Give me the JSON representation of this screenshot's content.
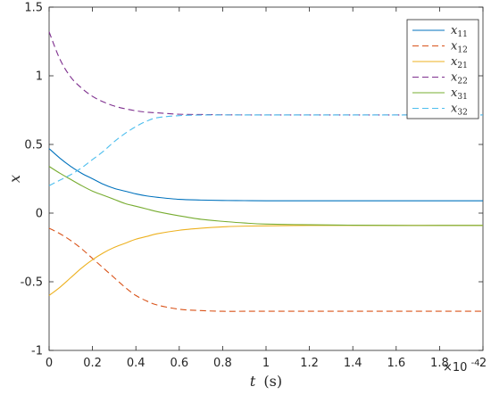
{
  "chart_data": {
    "type": "line",
    "xlabel": {
      "var": "t",
      "unit": "(s)"
    },
    "ylabel": "x",
    "x_multiplier": {
      "base": "×10",
      "exp": "-4"
    },
    "xlim": [
      0,
      2
    ],
    "ylim": [
      -1,
      1.5
    ],
    "xticks": [
      0,
      0.2,
      0.4,
      0.6,
      0.8,
      1,
      1.2,
      1.4,
      1.6,
      1.8,
      2
    ],
    "xtick_labels": [
      "0",
      "0.2",
      "0.4",
      "0.6",
      "0.8",
      "1",
      "1.2",
      "1.4",
      "1.6",
      "1.8",
      "2"
    ],
    "yticks": [
      -1,
      -0.5,
      0,
      0.5,
      1,
      1.5
    ],
    "ytick_labels": [
      "-1",
      "-0.5",
      "0",
      "0.5",
      "1",
      "1.5"
    ],
    "grid": false,
    "legend_position": "top-right",
    "x": [
      0,
      0.05,
      0.1,
      0.15,
      0.2,
      0.25,
      0.3,
      0.35,
      0.4,
      0.45,
      0.5,
      0.6,
      0.7,
      0.8,
      0.9,
      1.0,
      1.2,
      1.4,
      1.6,
      1.8,
      2.0
    ],
    "series": [
      {
        "name": "x11",
        "main": "x",
        "sub": "11",
        "color": "#0072BD",
        "dash": "solid",
        "values": [
          0.47,
          0.4,
          0.34,
          0.29,
          0.25,
          0.21,
          0.18,
          0.16,
          0.14,
          0.125,
          0.115,
          0.1,
          0.095,
          0.092,
          0.091,
          0.09,
          0.09,
          0.09,
          0.09,
          0.09,
          0.09
        ]
      },
      {
        "name": "x12",
        "main": "x",
        "sub": "12",
        "color": "#D95319",
        "dash": "dashed",
        "values": [
          -0.11,
          -0.15,
          -0.2,
          -0.26,
          -0.33,
          -0.4,
          -0.47,
          -0.54,
          -0.6,
          -0.64,
          -0.67,
          -0.7,
          -0.71,
          -0.715,
          -0.715,
          -0.715,
          -0.715,
          -0.715,
          -0.715,
          -0.715,
          -0.715
        ]
      },
      {
        "name": "x21",
        "main": "x",
        "sub": "21",
        "color": "#EDB120",
        "dash": "solid",
        "values": [
          -0.6,
          -0.54,
          -0.47,
          -0.4,
          -0.34,
          -0.29,
          -0.25,
          -0.22,
          -0.19,
          -0.17,
          -0.15,
          -0.125,
          -0.11,
          -0.1,
          -0.095,
          -0.093,
          -0.09,
          -0.09,
          -0.09,
          -0.09,
          -0.09
        ]
      },
      {
        "name": "x22",
        "main": "x",
        "sub": "22",
        "color": "#7E2F8E",
        "dash": "dashed",
        "values": [
          1.32,
          1.12,
          0.99,
          0.91,
          0.85,
          0.81,
          0.78,
          0.76,
          0.745,
          0.735,
          0.73,
          0.72,
          0.718,
          0.716,
          0.715,
          0.715,
          0.715,
          0.715,
          0.715,
          0.715,
          0.715
        ]
      },
      {
        "name": "x31",
        "main": "x",
        "sub": "31",
        "color": "#77AC30",
        "dash": "solid",
        "values": [
          0.34,
          0.29,
          0.245,
          0.2,
          0.16,
          0.13,
          0.1,
          0.07,
          0.05,
          0.03,
          0.01,
          -0.02,
          -0.045,
          -0.06,
          -0.072,
          -0.08,
          -0.085,
          -0.088,
          -0.09,
          -0.09,
          -0.09
        ]
      },
      {
        "name": "x32",
        "main": "x",
        "sub": "32",
        "color": "#4DBEEE",
        "dash": "dashed",
        "values": [
          0.2,
          0.24,
          0.28,
          0.33,
          0.39,
          0.45,
          0.52,
          0.58,
          0.63,
          0.67,
          0.695,
          0.71,
          0.714,
          0.715,
          0.715,
          0.715,
          0.715,
          0.715,
          0.715,
          0.715,
          0.715
        ]
      }
    ]
  }
}
